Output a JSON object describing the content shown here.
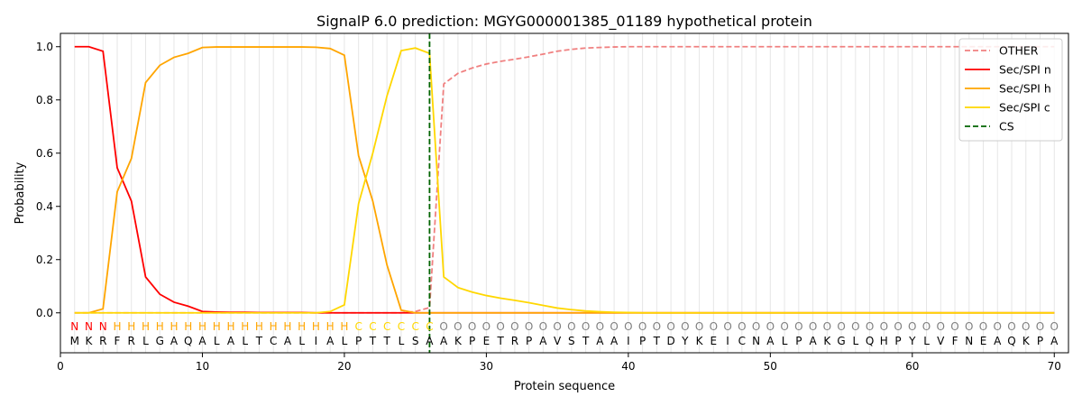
{
  "chart_data": {
    "type": "line",
    "title": "SignalP 6.0 prediction: MGYG000001385_01189 hypothetical protein",
    "xlabel": "Protein sequence",
    "ylabel": "Probability",
    "xlim": [
      0,
      71
    ],
    "ylim": [
      -0.15,
      1.05
    ],
    "xticks": [
      0,
      10,
      20,
      30,
      40,
      50,
      60,
      70
    ],
    "yticks": [
      0.0,
      0.2,
      0.4,
      0.6,
      0.8,
      1.0
    ],
    "xtick_labels": [
      "0",
      "10",
      "20",
      "30",
      "40",
      "50",
      "60",
      "70"
    ],
    "ytick_labels": [
      "0.0",
      "0.2",
      "0.4",
      "0.6",
      "0.8",
      "1.0"
    ],
    "grid": "vertical lines at each residue",
    "legend_position": "top-right",
    "sequence": [
      "M",
      "K",
      "R",
      "F",
      "R",
      "L",
      "G",
      "A",
      "Q",
      "A",
      "L",
      "A",
      "L",
      "T",
      "C",
      "A",
      "L",
      "I",
      "A",
      "L",
      "P",
      "T",
      "T",
      "L",
      "S",
      "A",
      "A",
      "K",
      "P",
      "E",
      "T",
      "R",
      "P",
      "A",
      "V",
      "S",
      "T",
      "A",
      "A",
      "I",
      "P",
      "T",
      "D",
      "Y",
      "K",
      "E",
      "I",
      "C",
      "N",
      "A",
      "L",
      "P",
      "A",
      "K",
      "G",
      "L",
      "Q",
      "H",
      "P",
      "Y",
      "L",
      "V",
      "F",
      "N",
      "E",
      "A",
      "Q",
      "K",
      "P",
      "A"
    ],
    "labels": [
      "N",
      "N",
      "N",
      "H",
      "H",
      "H",
      "H",
      "H",
      "H",
      "H",
      "H",
      "H",
      "H",
      "H",
      "H",
      "H",
      "H",
      "H",
      "H",
      "H",
      "C",
      "C",
      "C",
      "C",
      "C",
      "C",
      "O",
      "O",
      "O",
      "O",
      "O",
      "O",
      "O",
      "O",
      "O",
      "O",
      "O",
      "O",
      "O",
      "O",
      "O",
      "O",
      "O",
      "O",
      "O",
      "O",
      "O",
      "O",
      "O",
      "O",
      "O",
      "O",
      "O",
      "O",
      "O",
      "O",
      "O",
      "O",
      "O",
      "O",
      "O",
      "O",
      "O",
      "O",
      "O",
      "O",
      "O",
      "O",
      "O",
      "O"
    ],
    "label_colors": {
      "N": "#ff0000",
      "H": "#ffa500",
      "C": "#ffd700",
      "O": "#808080"
    },
    "cs_position": 26,
    "series": [
      {
        "name": "OTHER",
        "color": "#f08080",
        "style": "dashed",
        "values": [
          0,
          0,
          0,
          0,
          0,
          0,
          0,
          0,
          0,
          0,
          0,
          0,
          0,
          0,
          0,
          0,
          0,
          0,
          0,
          0,
          0,
          0,
          0,
          0,
          0.005,
          0.02,
          0.86,
          0.9,
          0.92,
          0.935,
          0.945,
          0.953,
          0.962,
          0.972,
          0.983,
          0.99,
          0.995,
          0.997,
          0.999,
          1,
          1,
          1,
          1,
          1,
          1,
          1,
          1,
          1,
          1,
          1,
          1,
          1,
          1,
          1,
          1,
          1,
          1,
          1,
          1,
          1,
          1,
          1,
          1,
          1,
          1,
          1,
          1,
          1,
          1,
          1
        ]
      },
      {
        "name": "Sec/SPI n",
        "color": "#ff0000",
        "style": "solid",
        "values": [
          1.0,
          1.0,
          0.983,
          0.545,
          0.42,
          0.135,
          0.07,
          0.04,
          0.025,
          0.005,
          0.003,
          0.002,
          0.002,
          0.001,
          0.001,
          0.001,
          0.001,
          0,
          0,
          0,
          0,
          0,
          0,
          0,
          0,
          0,
          0,
          0,
          0,
          0,
          0,
          0,
          0,
          0,
          0,
          0,
          0,
          0,
          0,
          0,
          0,
          0,
          0,
          0,
          0,
          0,
          0,
          0,
          0,
          0,
          0,
          0,
          0,
          0,
          0,
          0,
          0,
          0,
          0,
          0,
          0,
          0,
          0,
          0,
          0,
          0,
          0,
          0,
          0,
          0
        ]
      },
      {
        "name": "Sec/SPI h",
        "color": "#ffa500",
        "style": "solid",
        "values": [
          0,
          0,
          0.015,
          0.455,
          0.58,
          0.865,
          0.93,
          0.96,
          0.975,
          0.997,
          0.999,
          0.999,
          0.999,
          0.999,
          0.999,
          0.999,
          0.999,
          0.998,
          0.993,
          0.968,
          0.59,
          0.42,
          0.18,
          0.01,
          0,
          0,
          0,
          0,
          0,
          0,
          0,
          0,
          0,
          0,
          0,
          0,
          0,
          0,
          0,
          0,
          0,
          0,
          0,
          0,
          0,
          0,
          0,
          0,
          0,
          0,
          0,
          0,
          0,
          0,
          0,
          0,
          0,
          0,
          0,
          0,
          0,
          0,
          0,
          0,
          0,
          0,
          0,
          0,
          0,
          0
        ]
      },
      {
        "name": "Sec/SPI c",
        "color": "#ffd700",
        "style": "solid",
        "values": [
          0,
          0,
          0,
          0,
          0,
          0,
          0,
          0,
          0,
          0,
          0,
          0,
          0,
          0,
          0,
          0,
          0,
          0,
          0.005,
          0.03,
          0.41,
          0.6,
          0.815,
          0.985,
          0.995,
          0.975,
          0.135,
          0.095,
          0.078,
          0.065,
          0.055,
          0.047,
          0.038,
          0.028,
          0.018,
          0.012,
          0.007,
          0.004,
          0.002,
          0.001,
          0,
          0,
          0,
          0,
          0,
          0,
          0,
          0,
          0,
          0,
          0,
          0,
          0,
          0,
          0,
          0,
          0,
          0,
          0,
          0,
          0,
          0,
          0,
          0,
          0,
          0,
          0,
          0,
          0,
          0
        ]
      },
      {
        "name": "CS",
        "color": "#006400",
        "style": "dashed"
      }
    ]
  }
}
